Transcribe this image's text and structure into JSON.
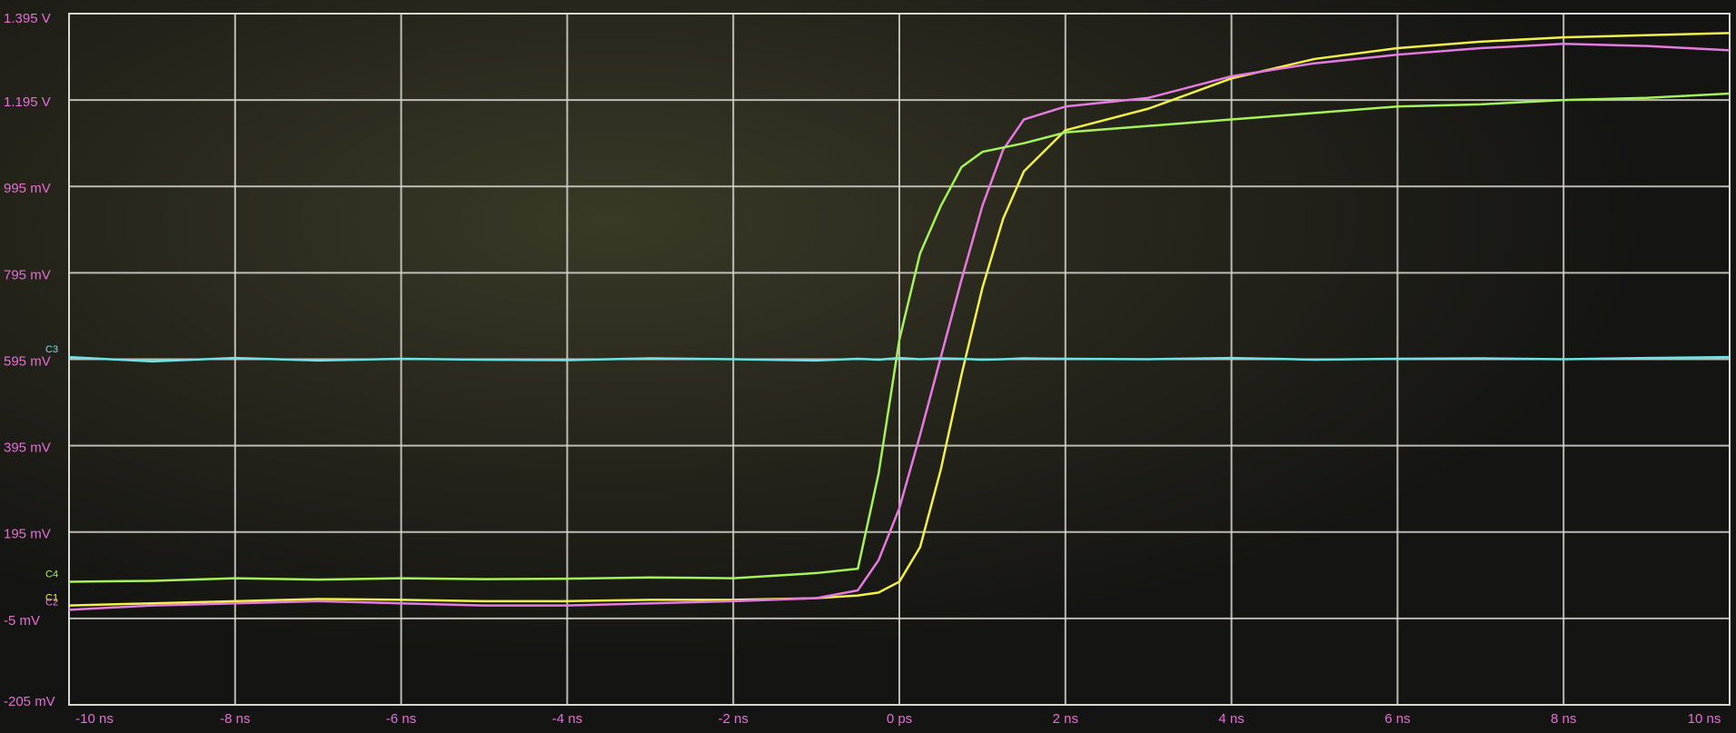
{
  "chart_data": {
    "type": "line",
    "x": [
      -10,
      -9,
      -8,
      -7,
      -6,
      -5,
      -4,
      -3,
      -2,
      -1,
      -0.5,
      -0.25,
      0,
      0.25,
      0.5,
      0.75,
      1,
      1.25,
      1.5,
      2,
      3,
      4,
      5,
      6,
      7,
      8,
      9,
      10
    ],
    "series": [
      {
        "name": "C1",
        "color": "#f2f04a",
        "values": [
          25,
          30,
          35,
          40,
          38,
          35,
          35,
          38,
          38,
          42,
          48,
          55,
          80,
          160,
          340,
          560,
          760,
          920,
          1030,
          1125,
          1175,
          1245,
          1290,
          1315,
          1330,
          1340,
          1345,
          1350
        ]
      },
      {
        "name": "C2",
        "color": "#e77ae0",
        "values": [
          15,
          25,
          30,
          35,
          30,
          25,
          25,
          30,
          35,
          42,
          60,
          130,
          250,
          420,
          600,
          780,
          950,
          1080,
          1150,
          1180,
          1200,
          1250,
          1280,
          1300,
          1315,
          1325,
          1320,
          1310
        ]
      },
      {
        "name": "C3",
        "color": "#6fe3e6",
        "values": [
          600,
          590,
          598,
          592,
          596,
          594,
          593,
          597,
          595,
          592,
          596,
          594,
          598,
          595,
          597,
          596,
          594,
          595,
          597,
          596,
          595,
          598,
          594,
          596,
          597,
          595,
          598,
          600
        ]
      },
      {
        "name": "C4",
        "color": "#a6f25a",
        "values": [
          80,
          82,
          88,
          85,
          88,
          86,
          87,
          90,
          88,
          100,
          110,
          330,
          640,
          840,
          950,
          1040,
          1075,
          1085,
          1095,
          1120,
          1135,
          1150,
          1165,
          1180,
          1185,
          1195,
          1200,
          1210
        ]
      }
    ],
    "xlim": [
      -10,
      10
    ],
    "xticks": [
      {
        "value": -10,
        "label": "-10 ns"
      },
      {
        "value": -8,
        "label": "-8 ns"
      },
      {
        "value": -6,
        "label": "-6 ns"
      },
      {
        "value": -4,
        "label": "-4 ns"
      },
      {
        "value": -2,
        "label": "-2 ns"
      },
      {
        "value": 0,
        "label": "0 ps"
      },
      {
        "value": 2,
        "label": "2 ns"
      },
      {
        "value": 4,
        "label": "4 ns"
      },
      {
        "value": 6,
        "label": "6 ns"
      },
      {
        "value": 8,
        "label": "8 ns"
      },
      {
        "value": 10,
        "label": "10 ns"
      }
    ],
    "ylim": [
      -205,
      1395
    ],
    "yticks": [
      {
        "value": -205,
        "label": "-205 mV"
      },
      {
        "value": -5,
        "label": "-5 mV"
      },
      {
        "value": 195,
        "label": "195 mV"
      },
      {
        "value": 395,
        "label": "395 mV"
      },
      {
        "value": 595,
        "label": "595 mV"
      },
      {
        "value": 795,
        "label": "795 mV"
      },
      {
        "value": 995,
        "label": "995 mV"
      },
      {
        "value": 1195,
        "label": "1.195 V"
      },
      {
        "value": 1395,
        "label": "1.395 V"
      }
    ],
    "grid": true
  }
}
